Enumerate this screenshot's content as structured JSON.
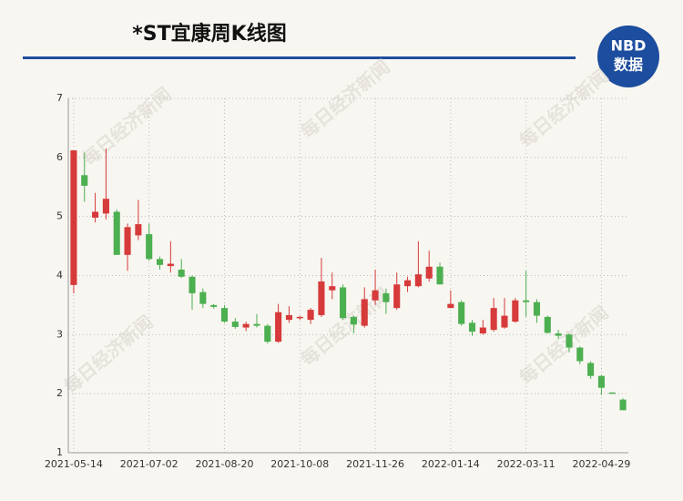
{
  "chart_data": {
    "type": "candlestick",
    "title": "*ST宜康周K线图",
    "logo": [
      "NBD",
      "数据"
    ],
    "watermark": "每日经济新闻",
    "categories": [
      "2021-05-14",
      null,
      null,
      null,
      null,
      null,
      null,
      "2021-07-02",
      null,
      null,
      null,
      null,
      null,
      null,
      "2021-08-20",
      null,
      null,
      null,
      null,
      null,
      null,
      "2021-10-08",
      null,
      null,
      null,
      null,
      null,
      null,
      "2021-11-26",
      null,
      null,
      null,
      null,
      null,
      null,
      "2022-01-14",
      null,
      null,
      null,
      null,
      null,
      null,
      "2022-03-11",
      null,
      null,
      null,
      null,
      null,
      null,
      "2022-04-29",
      null,
      null
    ],
    "open": [
      3.84,
      5.7,
      4.98,
      5.05,
      5.08,
      4.35,
      4.68,
      4.7,
      4.28,
      4.16,
      4.1,
      3.98,
      3.72,
      3.5,
      3.45,
      3.22,
      3.12,
      3.18,
      3.15,
      2.88,
      3.25,
      3.28,
      3.25,
      3.33,
      3.75,
      3.8,
      3.3,
      3.15,
      3.58,
      3.7,
      3.45,
      3.82,
      3.82,
      3.95,
      4.15,
      3.45,
      3.55,
      3.2,
      3.02,
      3.08,
      3.12,
      3.22,
      3.58,
      3.55,
      3.3,
      3.02,
      3.0,
      2.78,
      2.52,
      2.3,
      2.02,
      1.9
    ],
    "high": [
      6.12,
      6.08,
      5.4,
      6.15,
      5.12,
      4.88,
      5.28,
      4.88,
      4.32,
      4.58,
      4.28,
      4.0,
      3.78,
      3.52,
      3.5,
      3.28,
      3.22,
      3.35,
      3.18,
      3.52,
      3.48,
      3.32,
      3.45,
      4.3,
      4.05,
      3.85,
      3.32,
      3.8,
      4.1,
      3.78,
      4.05,
      3.98,
      4.58,
      4.42,
      4.22,
      3.75,
      3.58,
      3.25,
      3.25,
      3.62,
      3.62,
      3.62,
      4.08,
      3.6,
      3.32,
      3.08,
      3.02,
      2.8,
      2.55,
      2.32,
      2.02,
      1.92
    ],
    "low": [
      3.7,
      5.25,
      4.9,
      4.95,
      4.35,
      4.08,
      4.6,
      4.25,
      4.1,
      4.05,
      3.96,
      3.42,
      3.45,
      3.44,
      3.2,
      3.1,
      3.06,
      3.12,
      2.85,
      2.86,
      3.2,
      3.25,
      3.18,
      3.3,
      3.6,
      3.25,
      3.02,
      3.12,
      3.5,
      3.35,
      3.42,
      3.72,
      3.8,
      3.9,
      3.85,
      3.45,
      3.15,
      2.98,
      3.0,
      3.05,
      3.1,
      3.2,
      3.3,
      3.2,
      3.02,
      2.92,
      2.7,
      2.5,
      2.25,
      1.98,
      2.0,
      1.72
    ],
    "close": [
      6.12,
      5.52,
      5.08,
      5.3,
      4.35,
      4.82,
      4.87,
      4.28,
      4.18,
      4.2,
      3.98,
      3.7,
      3.52,
      3.47,
      3.22,
      3.13,
      3.18,
      3.15,
      2.88,
      3.38,
      3.33,
      3.3,
      3.42,
      3.9,
      3.82,
      3.28,
      3.17,
      3.6,
      3.75,
      3.55,
      3.85,
      3.92,
      4.02,
      4.15,
      3.85,
      3.52,
      3.18,
      3.05,
      3.12,
      3.45,
      3.32,
      3.58,
      3.55,
      3.32,
      3.03,
      2.98,
      2.78,
      2.55,
      2.3,
      2.1,
      2.0,
      1.72
    ],
    "up_color": "#d63a3a",
    "down_color": "#4caf50",
    "ylim": [
      1,
      7
    ],
    "yticks": [
      1,
      2,
      3,
      4,
      5,
      6,
      7
    ],
    "grid": true
  }
}
